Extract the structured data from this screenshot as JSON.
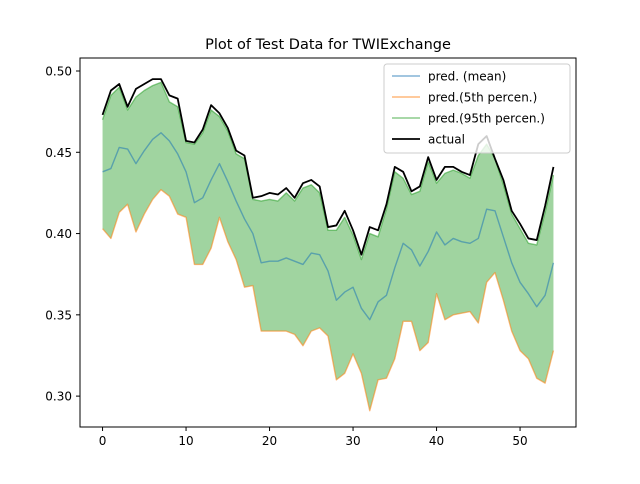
{
  "chart_data": {
    "type": "line",
    "title": "Plot of Test Data for TWIExchange",
    "xlabel": "",
    "ylabel": "",
    "xlim": [
      -2.7,
      56.7
    ],
    "ylim": [
      0.281,
      0.508
    ],
    "x_ticks": [
      0,
      10,
      20,
      30,
      40,
      50
    ],
    "y_ticks": [
      0.3,
      0.35,
      0.4,
      0.45,
      0.5
    ],
    "x_tick_labels": [
      "0",
      "10",
      "20",
      "30",
      "40",
      "50"
    ],
    "y_tick_labels": [
      "0.30",
      "0.35",
      "0.40",
      "0.45",
      "0.50"
    ],
    "grid": false,
    "legend_position": "top-right",
    "x": [
      0,
      1,
      2,
      3,
      4,
      5,
      6,
      7,
      8,
      9,
      10,
      11,
      12,
      13,
      14,
      15,
      16,
      17,
      18,
      19,
      20,
      21,
      22,
      23,
      24,
      25,
      26,
      27,
      28,
      29,
      30,
      31,
      32,
      33,
      34,
      35,
      36,
      37,
      38,
      39,
      40,
      41,
      42,
      43,
      44,
      45,
      46,
      47,
      48,
      49,
      50,
      51,
      52,
      53,
      54
    ],
    "series": [
      {
        "name": "pred. (mean)",
        "color": "#1f77b4",
        "values": [
          0.438,
          0.44,
          0.453,
          0.452,
          0.443,
          0.451,
          0.458,
          0.462,
          0.457,
          0.449,
          0.438,
          0.419,
          0.422,
          0.433,
          0.443,
          0.432,
          0.42,
          0.409,
          0.4,
          0.382,
          0.383,
          0.383,
          0.385,
          0.383,
          0.381,
          0.388,
          0.387,
          0.377,
          0.359,
          0.364,
          0.367,
          0.354,
          0.347,
          0.358,
          0.362,
          0.379,
          0.394,
          0.39,
          0.38,
          0.389,
          0.401,
          0.393,
          0.397,
          0.395,
          0.394,
          0.397,
          0.415,
          0.414,
          0.398,
          0.382,
          0.37,
          0.363,
          0.355,
          0.362,
          0.382
        ]
      },
      {
        "name": "pred.(5th percen.)",
        "color": "#ff7f0e",
        "values": [
          0.403,
          0.397,
          0.413,
          0.418,
          0.401,
          0.412,
          0.421,
          0.427,
          0.423,
          0.412,
          0.41,
          0.381,
          0.381,
          0.391,
          0.41,
          0.395,
          0.384,
          0.367,
          0.368,
          0.34,
          0.34,
          0.34,
          0.34,
          0.338,
          0.331,
          0.34,
          0.342,
          0.337,
          0.31,
          0.314,
          0.326,
          0.314,
          0.291,
          0.31,
          0.311,
          0.323,
          0.346,
          0.346,
          0.328,
          0.333,
          0.363,
          0.347,
          0.35,
          0.351,
          0.352,
          0.345,
          0.37,
          0.376,
          0.359,
          0.34,
          0.328,
          0.323,
          0.311,
          0.308,
          0.328
        ]
      },
      {
        "name": "pred.(95th percen.)",
        "color": "#2ca02c",
        "values": [
          0.47,
          0.485,
          0.49,
          0.476,
          0.484,
          0.488,
          0.491,
          0.493,
          0.481,
          0.478,
          0.456,
          0.455,
          0.462,
          0.476,
          0.472,
          0.463,
          0.449,
          0.446,
          0.421,
          0.42,
          0.421,
          0.42,
          0.425,
          0.42,
          0.428,
          0.43,
          0.425,
          0.402,
          0.402,
          0.41,
          0.399,
          0.384,
          0.4,
          0.398,
          0.415,
          0.438,
          0.434,
          0.424,
          0.426,
          0.444,
          0.431,
          0.437,
          0.439,
          0.437,
          0.434,
          0.448,
          0.455,
          0.446,
          0.43,
          0.412,
          0.403,
          0.394,
          0.393,
          0.413,
          0.436
        ]
      },
      {
        "name": "actual",
        "color": "#000000",
        "values": [
          0.473,
          0.488,
          0.492,
          0.478,
          0.489,
          0.492,
          0.495,
          0.495,
          0.485,
          0.483,
          0.457,
          0.456,
          0.464,
          0.479,
          0.474,
          0.465,
          0.451,
          0.448,
          0.422,
          0.423,
          0.425,
          0.424,
          0.428,
          0.422,
          0.431,
          0.433,
          0.429,
          0.404,
          0.405,
          0.414,
          0.402,
          0.387,
          0.404,
          0.402,
          0.418,
          0.441,
          0.438,
          0.426,
          0.429,
          0.447,
          0.433,
          0.441,
          0.441,
          0.438,
          0.436,
          0.455,
          0.46,
          0.446,
          0.433,
          0.414,
          0.406,
          0.397,
          0.396,
          0.417,
          0.441
        ]
      }
    ],
    "fill_between": {
      "lower_series": "pred.(5th percen.)",
      "upper_series": "pred.(95th percen.)",
      "color": "#2ca02c",
      "opacity": 0.45
    }
  }
}
